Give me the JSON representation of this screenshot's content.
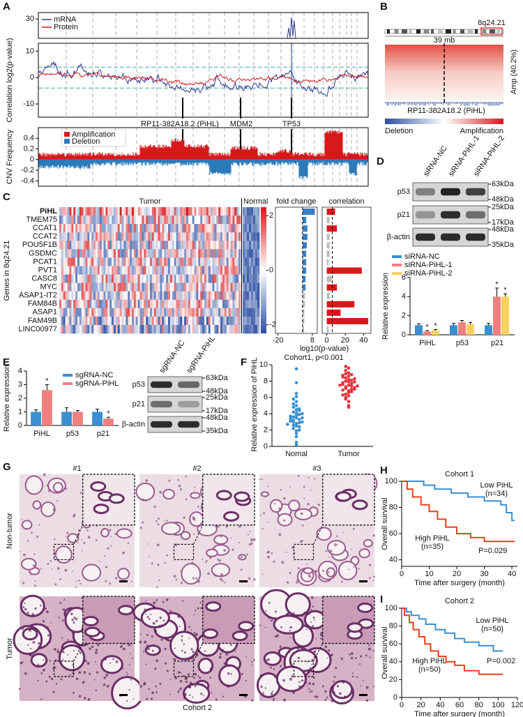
{
  "A": {
    "label": "A",
    "y_label": "Correlation log2(p-value)",
    "series": [
      {
        "name": "mRNA",
        "color": "#2b3990"
      },
      {
        "name": "Protein",
        "color": "#d7191c"
      }
    ],
    "top_yticks": [
      30
    ],
    "yticks": [
      10,
      0,
      -10
    ],
    "genes": [
      "RP11-382A18.2 (PiHL)",
      "MDM2",
      "TP53"
    ],
    "cnv_label": "CNV Frequency",
    "cnv_legend": [
      {
        "name": "Amplification",
        "color": "#d7191c"
      },
      {
        "name": "Deletion",
        "color": "#2b7bba"
      }
    ],
    "cnv_yticks": [
      0.4,
      0.2,
      0,
      -0.2,
      -0.4
    ]
  },
  "B": {
    "label": "B",
    "band": "8q24.21",
    "scale": "39 mb",
    "amp": "Amp (40.2%)",
    "gene": "RP11-382A18.2 (PiHL)",
    "colorbar": [
      "Deletion",
      "Amplification"
    ]
  },
  "C": {
    "label": "C",
    "tumor": "Tumor",
    "normal": "Normal",
    "y_label": "Genes in 8q24.21",
    "genes": [
      "PiHL",
      "TMEM75",
      "CCAT1",
      "CCAT2",
      "POU5F1B",
      "GSDMC",
      "PCAT1",
      "PVT1",
      "CASC8",
      "MYC",
      "ASAP1-IT2",
      "FAM84B",
      "ASAP1",
      "FAM49B",
      "LINC00977"
    ],
    "colorbar_ticks": [
      2,
      0,
      -2
    ],
    "fold_change": {
      "title": "fold change",
      "values": [
        10,
        3,
        4,
        4,
        3.5,
        3,
        3,
        3,
        2.5,
        2.5,
        2,
        2,
        1.5,
        1.5,
        1.2
      ],
      "significant": [
        true,
        true,
        true,
        true,
        true,
        true,
        true,
        true,
        true,
        true,
        false,
        false,
        false,
        false,
        false
      ],
      "xlim": [
        -22,
        12
      ],
      "xticks": [
        -20,
        8
      ]
    },
    "correlation": {
      "title": "correlation",
      "x_label": "log10(p-value)",
      "values": [
        9,
        3,
        11,
        3,
        3,
        3,
        2,
        38,
        5,
        11,
        3,
        30,
        15,
        45,
        2
      ],
      "threshold": 6,
      "xlim": [
        -5,
        48
      ],
      "xticks": [
        0,
        20,
        40
      ]
    }
  },
  "D": {
    "label": "D",
    "blot_columns": [
      "siRNA-NC",
      "siRNA-PiHL-1",
      "siRNA-PiHL-2"
    ],
    "blot_rows": [
      "p53",
      "p21",
      "β-actin"
    ],
    "markers": [
      [
        "63kDa",
        "48kDa"
      ],
      [
        "25kDa",
        "17kDa"
      ],
      [
        "48kDa",
        "35kDa"
      ]
    ],
    "chart": {
      "y_label": "Relative expression",
      "categories": [
        "PiHL",
        "p53",
        "p21"
      ],
      "ylim": [
        0,
        6
      ],
      "yticks": [
        0,
        2,
        4,
        6
      ],
      "series": [
        {
          "name": "siRNA-NC",
          "color": "#3a8fd0",
          "values": [
            1,
            1,
            1
          ],
          "errors": [
            0.15,
            0.2,
            0.2
          ],
          "stars": [
            null,
            null,
            null
          ]
        },
        {
          "name": "siRNA-PiHL-1",
          "color": "#f08080",
          "values": [
            0.35,
            1.3,
            4.0
          ],
          "errors": [
            0.1,
            0.2,
            0.9
          ],
          "stars": [
            "*",
            null,
            "*"
          ]
        },
        {
          "name": "siRNA-PiHL-2",
          "color": "#f7d060",
          "values": [
            0.45,
            1.1,
            4.0
          ],
          "errors": [
            0.1,
            0.2,
            0.3
          ],
          "stars": [
            "*",
            null,
            "*"
          ]
        }
      ]
    }
  },
  "E": {
    "label": "E",
    "blot_columns": [
      "sgRNA-NC",
      "sgRNA-PiHL"
    ],
    "blot_rows": [
      "p53",
      "p21",
      "β-actin"
    ],
    "markers": [
      [
        "63kDa",
        "48kDa"
      ],
      [
        "25kDa",
        "17kDa"
      ],
      [
        "48kDa",
        "35kDa"
      ]
    ],
    "chart": {
      "y_label": "Relative expression",
      "categories": [
        "PiHL",
        "p53",
        "p21"
      ],
      "ylim": [
        0,
        4
      ],
      "yticks": [
        0,
        1,
        2,
        3,
        4
      ],
      "series": [
        {
          "name": "sgRNA-NC",
          "color": "#3a8fd0",
          "values": [
            1,
            1,
            1
          ],
          "errors": [
            0.15,
            0.3,
            0.2
          ],
          "stars": [
            null,
            null,
            null
          ]
        },
        {
          "name": "sgRNA-PiHL",
          "color": "#f08080",
          "values": [
            2.6,
            1.0,
            0.5
          ],
          "errors": [
            0.4,
            0.1,
            0.1
          ],
          "stars": [
            "*",
            null,
            "*"
          ]
        }
      ]
    }
  },
  "F": {
    "label": "F",
    "title": "Cohort1, p<0.001",
    "y_label": "Relative expression of PiHL",
    "categories": [
      "Nomal",
      "Tumor"
    ],
    "ylim": [
      0,
      10
    ],
    "yticks": [
      0,
      2,
      4,
      6,
      8,
      10
    ],
    "series": [
      {
        "color": "#3a8fd0",
        "values": [
          3.5,
          2.8,
          4.1,
          3.2,
          2.5,
          5.0,
          3.8,
          4.5,
          1.9,
          3.0,
          2.2,
          6.1,
          3.6,
          4.8,
          2.9,
          3.3,
          0.5,
          1.2,
          5.5,
          3.9,
          4.2,
          2.6,
          3.1,
          9.5,
          7.8,
          6.5,
          3.4,
          2.0,
          4.6,
          3.7,
          1.6,
          5.2,
          2.4,
          3.0,
          4.0,
          0.2,
          2.7,
          3.5,
          5.8,
          4.4
        ]
      },
      {
        "color": "#e8303a",
        "values": [
          7.5,
          8.2,
          6.8,
          9.0,
          7.1,
          8.6,
          6.2,
          7.9,
          8.9,
          5.5,
          7.3,
          8.0,
          9.6,
          6.6,
          7.7,
          8.4,
          5.0,
          7.0,
          8.8,
          7.4,
          6.9,
          9.3,
          7.6,
          8.1,
          6.4,
          7.2,
          4.8,
          8.5,
          7.8,
          6.0,
          9.8,
          7.5,
          8.3,
          6.7,
          7.0,
          5.8,
          8.7,
          7.9,
          6.3,
          7.4
        ]
      }
    ]
  },
  "G": {
    "label": "G",
    "columns": [
      "#1",
      "#2",
      "#3"
    ],
    "rows": [
      "Non-tumor",
      "Tumor"
    ],
    "caption": "Cohort 2"
  },
  "H": {
    "label": "H",
    "title": "Cohort 1",
    "y_label": "Overall survival",
    "x_label": "Time after surgery (month)",
    "xlim": [
      0,
      42
    ],
    "xticks": [
      0,
      10,
      20,
      30,
      40
    ],
    "ylim": [
      35,
      100
    ],
    "yticks": [
      40,
      60,
      80,
      100
    ],
    "p_label": "P=0.029",
    "series": [
      {
        "name": "Low PiHL",
        "n": "(n=34)",
        "color": "#3a8fd0",
        "x": [
          0,
          8,
          8,
          12,
          12,
          18,
          18,
          24,
          24,
          30,
          30,
          36,
          36,
          38,
          38,
          40,
          40,
          41
        ],
        "y": [
          100,
          100,
          97,
          97,
          94,
          94,
          91,
          91,
          88,
          88,
          85,
          85,
          82,
          82,
          76,
          76,
          70,
          70
        ]
      },
      {
        "name": "High PiHL",
        "n": "(n=35)",
        "color": "#e8401c",
        "x": [
          0,
          2,
          2,
          4,
          4,
          7,
          7,
          10,
          10,
          13,
          13,
          16,
          16,
          20,
          20,
          25,
          25,
          30,
          30,
          41
        ],
        "y": [
          100,
          100,
          94,
          94,
          88,
          88,
          82,
          82,
          77,
          77,
          71,
          71,
          65,
          65,
          60,
          60,
          57,
          57,
          54,
          54
        ]
      }
    ]
  },
  "I": {
    "label": "I",
    "title": "Cohort 2",
    "y_label": "Overall survival",
    "x_label": "Time after surgery (month)",
    "xlim": [
      0,
      120
    ],
    "xticks": [
      0,
      20,
      40,
      60,
      80,
      100,
      120
    ],
    "ylim": [
      0,
      100
    ],
    "yticks": [
      0,
      20,
      40,
      60,
      80,
      100
    ],
    "p_label": "P=0.002",
    "series": [
      {
        "name": "Low PiHL",
        "n": "(n=50)",
        "color": "#3a8fd0",
        "x": [
          0,
          5,
          5,
          10,
          10,
          18,
          18,
          25,
          25,
          35,
          35,
          45,
          45,
          55,
          55,
          65,
          65,
          80,
          80,
          95,
          95,
          105
        ],
        "y": [
          100,
          100,
          96,
          96,
          92,
          92,
          88,
          88,
          82,
          82,
          76,
          76,
          72,
          72,
          66,
          66,
          62,
          62,
          58,
          58,
          52,
          52
        ]
      },
      {
        "name": "High PiHL",
        "n": "(n=50)",
        "color": "#e8401c",
        "x": [
          0,
          3,
          3,
          8,
          8,
          12,
          12,
          18,
          18,
          24,
          24,
          30,
          30,
          38,
          38,
          46,
          46,
          55,
          55,
          65,
          65,
          80,
          80,
          105
        ],
        "y": [
          100,
          100,
          92,
          92,
          84,
          84,
          76,
          76,
          68,
          68,
          60,
          60,
          52,
          52,
          46,
          46,
          40,
          40,
          36,
          36,
          30,
          30,
          26,
          26
        ]
      }
    ]
  }
}
